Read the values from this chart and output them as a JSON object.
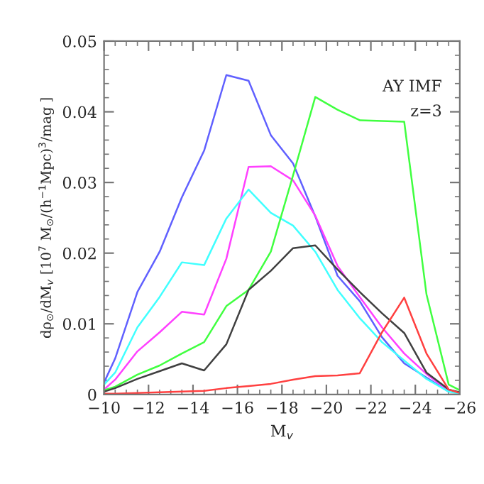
{
  "chart_data": {
    "type": "line",
    "xlabel": "M$_{v}$",
    "ylabel": "dρ$_{⊙}$/dM$_{v}$ [10$^{7}$ M$_{⊙}$/(h$^{−1}$Mpc)$^{3}$/mag ]",
    "annotations": [
      "AY IMF",
      "z=3"
    ],
    "x": [
      -10,
      -10.5,
      -11.5,
      -12.5,
      -13.5,
      -14.5,
      -15.5,
      -16.5,
      -17.5,
      -18.5,
      -19.5,
      -20.5,
      -21.5,
      -22.5,
      -23.5,
      -24.5,
      -25.5,
      -26
    ],
    "series": [
      {
        "color": "#6060ff",
        "values": [
          0.0017,
          0.0051,
          0.0145,
          0.0202,
          0.0279,
          0.0345,
          0.0452,
          0.0444,
          0.0367,
          0.0327,
          0.0252,
          0.0168,
          0.0132,
          0.0081,
          0.0044,
          0.0024,
          0.0004,
          null
        ]
      },
      {
        "color": "#ff40ff",
        "values": [
          0.0007,
          0.0021,
          0.0061,
          0.0088,
          0.0117,
          0.0113,
          0.0192,
          0.0322,
          0.0323,
          0.0303,
          0.0253,
          0.0182,
          0.0138,
          0.0095,
          0.0058,
          0.0029,
          0.0005,
          null
        ]
      },
      {
        "color": "#40ffff",
        "values": [
          0.0014,
          0.0031,
          0.0095,
          0.0138,
          0.0187,
          0.0183,
          0.0249,
          0.029,
          0.0257,
          0.0239,
          0.0202,
          0.0148,
          0.0108,
          0.0074,
          0.0048,
          0.0022,
          0.0004,
          0.0001
        ]
      },
      {
        "color": "#40ff40",
        "values": [
          0.0006,
          0.0011,
          0.0028,
          0.0041,
          0.0058,
          0.0074,
          0.0125,
          0.0148,
          0.0202,
          0.031,
          0.0421,
          0.0403,
          0.0388,
          0.0387,
          0.0386,
          0.0142,
          0.0014,
          0.0006
        ]
      },
      {
        "color": "#404040",
        "values": [
          0.0004,
          0.0009,
          0.0022,
          0.0033,
          0.0044,
          0.0034,
          0.0071,
          0.0148,
          0.0175,
          0.0207,
          0.0211,
          0.0177,
          0.0145,
          0.0115,
          0.0087,
          0.0031,
          0.0007,
          0.0003
        ]
      },
      {
        "color": "#ff4040",
        "values": [
          0.0001,
          0.0001,
          0.0002,
          0.0003,
          0.0004,
          0.0005,
          0.0009,
          0.0012,
          0.0015,
          0.0021,
          0.0026,
          0.0027,
          0.003,
          0.0088,
          0.0137,
          0.0058,
          0.0007,
          0.0002
        ]
      }
    ],
    "xlim": [
      -10,
      -26
    ],
    "xticks": [
      {
        "value": -10,
        "label": "−10"
      },
      {
        "value": -12,
        "label": "−12"
      },
      {
        "value": -14,
        "label": "−14"
      },
      {
        "value": -16,
        "label": "−16"
      },
      {
        "value": -18,
        "label": "−18"
      },
      {
        "value": -20,
        "label": "−20"
      },
      {
        "value": -22,
        "label": "−22"
      },
      {
        "value": -24,
        "label": "−24"
      },
      {
        "value": -26,
        "label": "−26"
      }
    ],
    "ylim": [
      0,
      0.05
    ],
    "yticks": [
      0,
      0.01,
      0.02,
      0.03,
      0.04,
      0.05
    ],
    "grid": false,
    "legend": false
  }
}
